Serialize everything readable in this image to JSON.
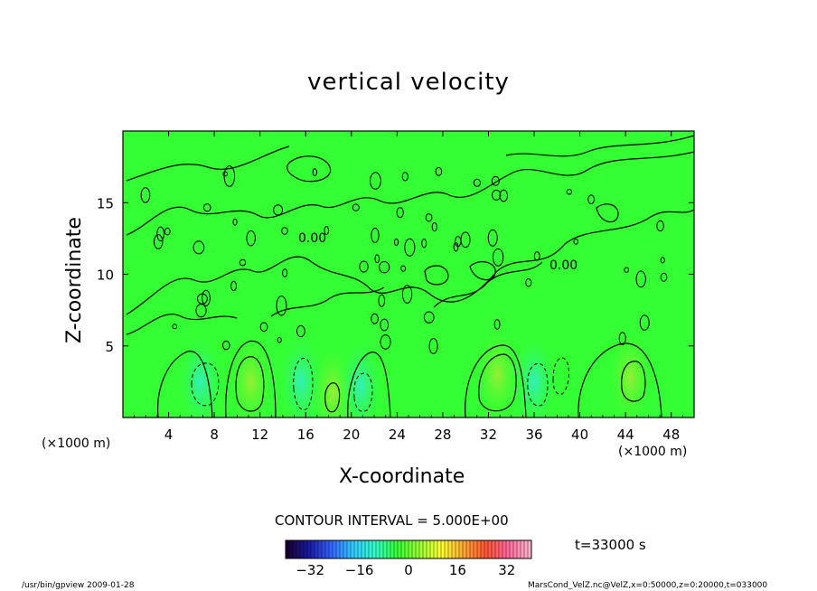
{
  "title": "vertical velocity",
  "chart_data": {
    "type": "heatmap",
    "title": "vertical velocity",
    "xlabel": "X-coordinate",
    "ylabel": "Z-coordinate",
    "x_unit_left": "(×1000 m)",
    "x_unit_right": "(×1000 m)",
    "xlim": [
      0,
      50
    ],
    "ylim": [
      0,
      20
    ],
    "x_ticks": [
      "4",
      "8",
      "12",
      "16",
      "20",
      "24",
      "28",
      "32",
      "36",
      "40",
      "44",
      "48"
    ],
    "y_ticks": [
      "5",
      "10",
      "15"
    ],
    "x_tick_values": [
      4,
      8,
      12,
      16,
      20,
      24,
      28,
      32,
      36,
      40,
      44,
      48
    ],
    "y_tick_values": [
      5,
      10,
      15
    ],
    "contour_label": "0.00",
    "contour_interval_text": "CONTOUR INTERVAL = 5.000E+00",
    "time_text": "t=33000 s",
    "colorbar": {
      "ticks": [
        "−32",
        "−16",
        "0",
        "16",
        "32"
      ],
      "tick_values": [
        -32,
        -16,
        0,
        16,
        32
      ],
      "range": [
        -40,
        40
      ],
      "colors": [
        "#1a0033",
        "#1a1aa6",
        "#3366ff",
        "#33ccff",
        "#33ffcc",
        "#33ff33",
        "#99ff33",
        "#ffff33",
        "#ffaa33",
        "#ff5533",
        "#ff6699",
        "#ffb3cc"
      ]
    },
    "features": [
      {
        "x": 6.8,
        "z": 2.5,
        "value": -8,
        "type": "updraft-neg"
      },
      {
        "x": 11.2,
        "z": 2.5,
        "value": 12,
        "type": "updraft-pos"
      },
      {
        "x": 15.6,
        "z": 2.5,
        "value": -5,
        "type": "updraft-neg"
      },
      {
        "x": 18.4,
        "z": 1.8,
        "value": 6,
        "type": "updraft-pos"
      },
      {
        "x": 20.8,
        "z": 2.2,
        "value": -8,
        "type": "updraft-neg"
      },
      {
        "x": 32.8,
        "z": 3.0,
        "value": 10,
        "type": "updraft-pos"
      },
      {
        "x": 36.0,
        "z": 2.5,
        "value": -6,
        "type": "updraft-neg"
      },
      {
        "x": 44.4,
        "z": 2.8,
        "value": 8,
        "type": "updraft-pos"
      }
    ]
  },
  "footer": {
    "left": "/usr/bin/gpview   2009-01-28",
    "right": "MarsCond_VelZ.nc@VelZ,x=0:50000,z=0:20000,t=033000"
  }
}
